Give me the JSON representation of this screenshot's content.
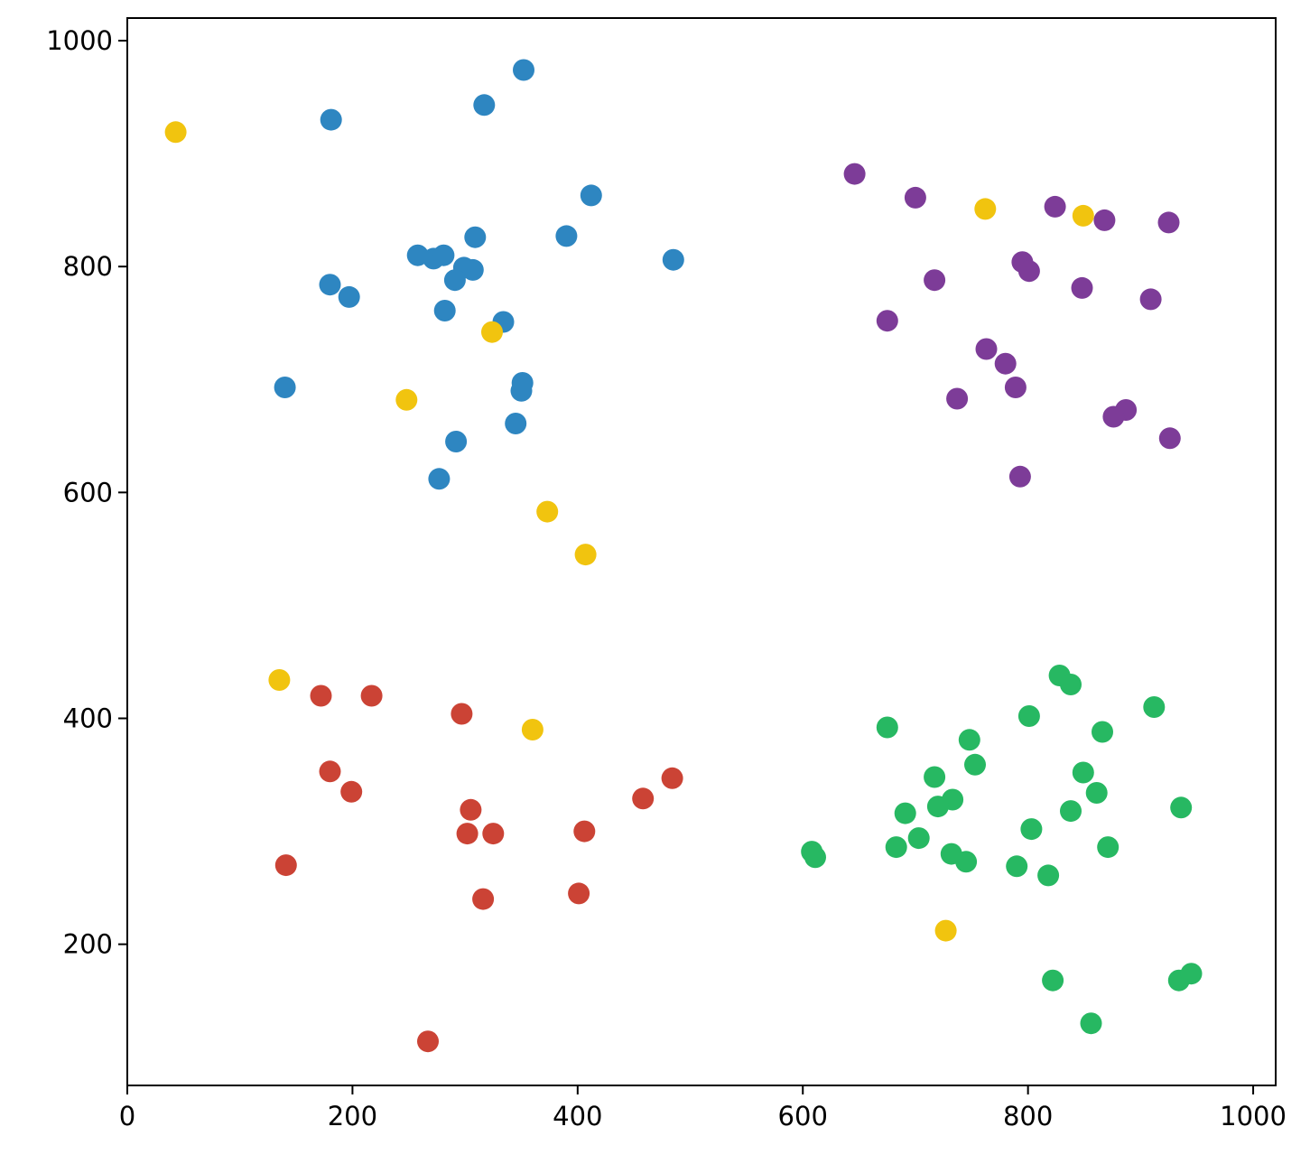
{
  "chart_data": {
    "type": "scatter",
    "title": "",
    "xlabel": "",
    "ylabel": "",
    "xlim": [
      0,
      1020
    ],
    "ylim": [
      75,
      1020
    ],
    "x_ticks": [
      0,
      200,
      400,
      600,
      800,
      1000
    ],
    "y_ticks": [
      200,
      400,
      600,
      800,
      1000
    ],
    "x_tick_labels": [
      "0",
      "200",
      "400",
      "600",
      "800",
      "1000"
    ],
    "y_tick_labels": [
      "200",
      "400",
      "600",
      "800",
      "1000"
    ],
    "grid": false,
    "legend": "none",
    "series": [
      {
        "color": "#2e86c1",
        "points": [
          [
            352,
            974
          ],
          [
            317,
            943
          ],
          [
            181,
            930
          ],
          [
            412,
            863
          ],
          [
            309,
            826
          ],
          [
            390,
            827
          ],
          [
            258,
            810
          ],
          [
            272,
            807
          ],
          [
            281,
            810
          ],
          [
            299,
            799
          ],
          [
            307,
            797
          ],
          [
            291,
            788
          ],
          [
            485,
            806
          ],
          [
            180,
            784
          ],
          [
            197,
            773
          ],
          [
            282,
            761
          ],
          [
            334,
            751
          ],
          [
            140,
            693
          ],
          [
            351,
            697
          ],
          [
            350,
            690
          ],
          [
            345,
            661
          ],
          [
            292,
            645
          ],
          [
            277,
            612
          ]
        ]
      },
      {
        "color": "#7d3c98",
        "points": [
          [
            646,
            882
          ],
          [
            700,
            861
          ],
          [
            824,
            853
          ],
          [
            868,
            841
          ],
          [
            925,
            839
          ],
          [
            795,
            804
          ],
          [
            801,
            796
          ],
          [
            717,
            788
          ],
          [
            848,
            781
          ],
          [
            909,
            771
          ],
          [
            675,
            752
          ],
          [
            763,
            727
          ],
          [
            780,
            714
          ],
          [
            789,
            693
          ],
          [
            737,
            683
          ],
          [
            887,
            673
          ],
          [
            876,
            667
          ],
          [
            926,
            648
          ],
          [
            793,
            614
          ]
        ]
      },
      {
        "color": "#cb4335",
        "points": [
          [
            172,
            420
          ],
          [
            217,
            420
          ],
          [
            297,
            404
          ],
          [
            180,
            353
          ],
          [
            199,
            335
          ],
          [
            484,
            347
          ],
          [
            458,
            329
          ],
          [
            305,
            319
          ],
          [
            302,
            298
          ],
          [
            325,
            298
          ],
          [
            406,
            300
          ],
          [
            141,
            270
          ],
          [
            316,
            240
          ],
          [
            401,
            245
          ],
          [
            267,
            114
          ]
        ]
      },
      {
        "color": "#27b862",
        "points": [
          [
            828,
            438
          ],
          [
            838,
            430
          ],
          [
            912,
            410
          ],
          [
            675,
            392
          ],
          [
            801,
            402
          ],
          [
            748,
            381
          ],
          [
            866,
            388
          ],
          [
            753,
            359
          ],
          [
            717,
            348
          ],
          [
            849,
            352
          ],
          [
            861,
            334
          ],
          [
            733,
            328
          ],
          [
            720,
            322
          ],
          [
            691,
            316
          ],
          [
            838,
            318
          ],
          [
            936,
            321
          ],
          [
            803,
            302
          ],
          [
            703,
            294
          ],
          [
            683,
            286
          ],
          [
            871,
            286
          ],
          [
            608,
            282
          ],
          [
            611,
            277
          ],
          [
            732,
            280
          ],
          [
            745,
            273
          ],
          [
            790,
            269
          ],
          [
            818,
            261
          ],
          [
            822,
            168
          ],
          [
            934,
            168
          ],
          [
            945,
            174
          ],
          [
            856,
            130
          ]
        ]
      },
      {
        "color": "#f1c40f",
        "points": [
          [
            43,
            919
          ],
          [
            762,
            851
          ],
          [
            849,
            845
          ],
          [
            324,
            742
          ],
          [
            248,
            682
          ],
          [
            373,
            583
          ],
          [
            407,
            545
          ],
          [
            135,
            434
          ],
          [
            360,
            390
          ],
          [
            727,
            212
          ]
        ]
      }
    ]
  }
}
